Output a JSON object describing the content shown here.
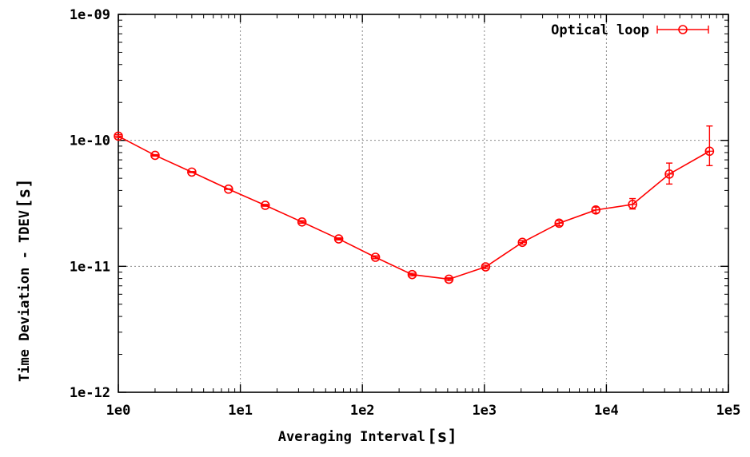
{
  "chart_data": {
    "type": "line",
    "xlabel": "Averaging Interval",
    "xlabel_unit": "[s]",
    "ylabel": "Time Deviation - TDEV",
    "ylabel_unit": "[s]",
    "x_scale": "log",
    "y_scale": "log",
    "xlim": [
      1,
      100000
    ],
    "ylim": [
      1e-12,
      1e-09
    ],
    "x_ticks": [
      {
        "value": 1,
        "label": "1e0"
      },
      {
        "value": 10,
        "label": "1e1"
      },
      {
        "value": 100,
        "label": "1e2"
      },
      {
        "value": 1000,
        "label": "1e3"
      },
      {
        "value": 10000,
        "label": "1e4"
      },
      {
        "value": 100000,
        "label": "1e5"
      }
    ],
    "y_ticks": [
      {
        "value": 1e-09,
        "label": "1e-09"
      },
      {
        "value": 1e-10,
        "label": "1e-10"
      },
      {
        "value": 1e-11,
        "label": "1e-11"
      },
      {
        "value": 1e-12,
        "label": "1e-12"
      }
    ],
    "grid": true,
    "legend_position": "top-right",
    "series": [
      {
        "name": "Optical loop",
        "color": "#ff0000",
        "marker": "circle",
        "error_bars": true,
        "x": [
          1,
          2,
          4,
          8,
          16,
          32,
          64,
          128,
          256,
          512,
          1024,
          2048,
          4096,
          8192,
          16384,
          32768,
          70000
        ],
        "y": [
          1.08e-10,
          7.6e-11,
          5.6e-11,
          4.1e-11,
          3.05e-11,
          2.25e-11,
          1.65e-11,
          1.18e-11,
          8.6e-12,
          7.9e-12,
          9.9e-12,
          1.55e-11,
          2.2e-11,
          2.8e-11,
          3.1e-11,
          5.4e-11,
          8.2e-11
        ],
        "y_err_low": [
          1.05e-10,
          7.5e-11,
          5.55e-11,
          4.08e-11,
          3e-11,
          2.2e-11,
          1.62e-11,
          1.15e-11,
          8.4e-12,
          7.7e-12,
          9.6e-12,
          1.5e-11,
          2.1e-11,
          2.65e-11,
          2.85e-11,
          4.5e-11,
          6.3e-11
        ],
        "y_err_high": [
          1.11e-10,
          7.7e-11,
          5.65e-11,
          4.12e-11,
          3.1e-11,
          2.3e-11,
          1.68e-11,
          1.21e-11,
          8.8e-12,
          8.1e-12,
          1.02e-11,
          1.6e-11,
          2.3e-11,
          2.95e-11,
          3.45e-11,
          6.6e-11,
          1.3e-10
        ]
      }
    ]
  }
}
